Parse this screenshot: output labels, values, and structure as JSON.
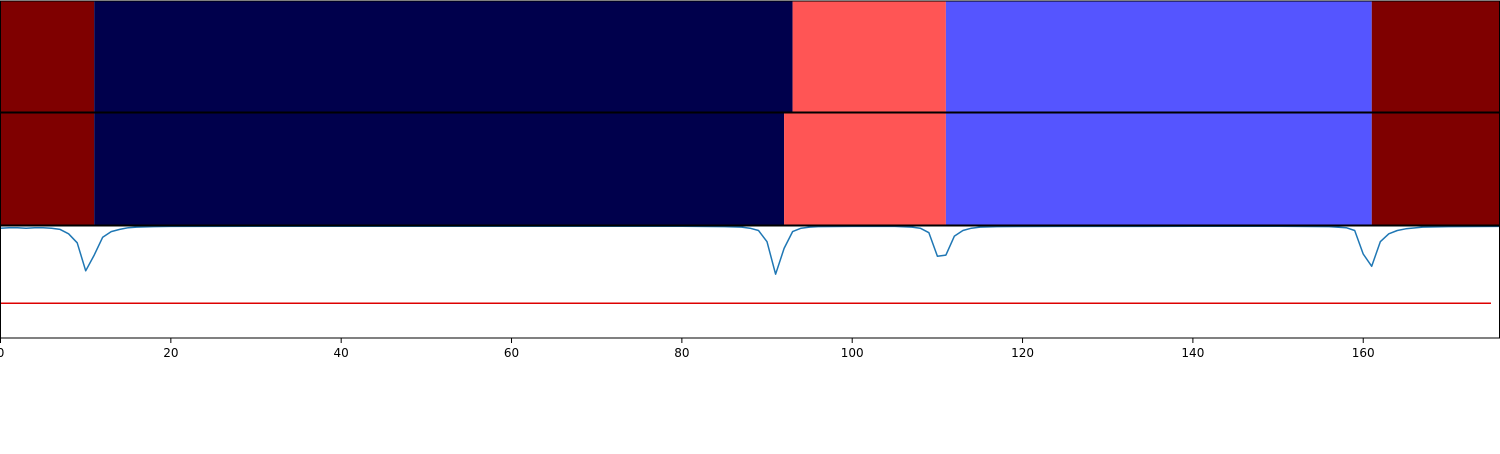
{
  "chart_data": {
    "type": "segmentation-timeline",
    "x_range": [
      0,
      176
    ],
    "x_ticks": [
      0,
      20,
      40,
      60,
      80,
      100,
      120,
      140,
      160
    ],
    "segment_colors": {
      "dark_red": "#7f0000",
      "navy": "#00004c",
      "light_red": "#ff5555",
      "light_blue": "#5555ff"
    },
    "tracks": [
      {
        "segments": [
          {
            "start": 0,
            "end": 11,
            "color": "dark_red"
          },
          {
            "start": 11,
            "end": 93,
            "color": "navy"
          },
          {
            "start": 93,
            "end": 111,
            "color": "light_red"
          },
          {
            "start": 111,
            "end": 161,
            "color": "light_blue"
          },
          {
            "start": 161,
            "end": 176,
            "color": "dark_red"
          }
        ]
      },
      {
        "segments": [
          {
            "start": 0,
            "end": 11,
            "color": "dark_red"
          },
          {
            "start": 11,
            "end": 92,
            "color": "navy"
          },
          {
            "start": 92,
            "end": 111,
            "color": "light_red"
          },
          {
            "start": 111,
            "end": 161,
            "color": "light_blue"
          },
          {
            "start": 161,
            "end": 176,
            "color": "dark_red"
          }
        ]
      }
    ],
    "line_panel": {
      "y_range": [
        0,
        1
      ],
      "series_color": "#1f77b4",
      "series": [
        [
          0,
          0.98
        ],
        [
          1,
          0.985
        ],
        [
          2,
          0.985
        ],
        [
          3,
          0.98
        ],
        [
          4,
          0.985
        ],
        [
          5,
          0.985
        ],
        [
          6,
          0.98
        ],
        [
          7,
          0.97
        ],
        [
          8,
          0.93
        ],
        [
          9,
          0.85
        ],
        [
          10,
          0.6
        ],
        [
          11,
          0.74
        ],
        [
          12,
          0.9
        ],
        [
          13,
          0.95
        ],
        [
          14,
          0.97
        ],
        [
          15,
          0.985
        ],
        [
          16,
          0.99
        ],
        [
          18,
          0.995
        ],
        [
          20,
          0.996
        ],
        [
          30,
          0.997
        ],
        [
          40,
          0.998
        ],
        [
          50,
          0.998
        ],
        [
          60,
          0.998
        ],
        [
          70,
          0.998
        ],
        [
          80,
          0.997
        ],
        [
          85,
          0.995
        ],
        [
          87,
          0.99
        ],
        [
          88,
          0.98
        ],
        [
          89,
          0.96
        ],
        [
          90,
          0.86
        ],
        [
          91,
          0.57
        ],
        [
          92,
          0.8
        ],
        [
          93,
          0.95
        ],
        [
          94,
          0.98
        ],
        [
          95,
          0.99
        ],
        [
          96,
          0.995
        ],
        [
          100,
          0.996
        ],
        [
          105,
          0.996
        ],
        [
          107,
          0.99
        ],
        [
          108,
          0.98
        ],
        [
          109,
          0.94
        ],
        [
          110,
          0.73
        ],
        [
          111,
          0.74
        ],
        [
          112,
          0.91
        ],
        [
          113,
          0.96
        ],
        [
          114,
          0.98
        ],
        [
          115,
          0.99
        ],
        [
          117,
          0.995
        ],
        [
          125,
          0.996
        ],
        [
          140,
          0.997
        ],
        [
          150,
          0.997
        ],
        [
          156,
          0.995
        ],
        [
          158,
          0.985
        ],
        [
          159,
          0.96
        ],
        [
          160,
          0.75
        ],
        [
          161,
          0.64
        ],
        [
          162,
          0.86
        ],
        [
          163,
          0.93
        ],
        [
          164,
          0.96
        ],
        [
          165,
          0.975
        ],
        [
          167,
          0.99
        ],
        [
          170,
          0.995
        ],
        [
          176,
          0.996
        ]
      ],
      "threshold_value": 0.31,
      "threshold_color": "#dd0000"
    }
  }
}
